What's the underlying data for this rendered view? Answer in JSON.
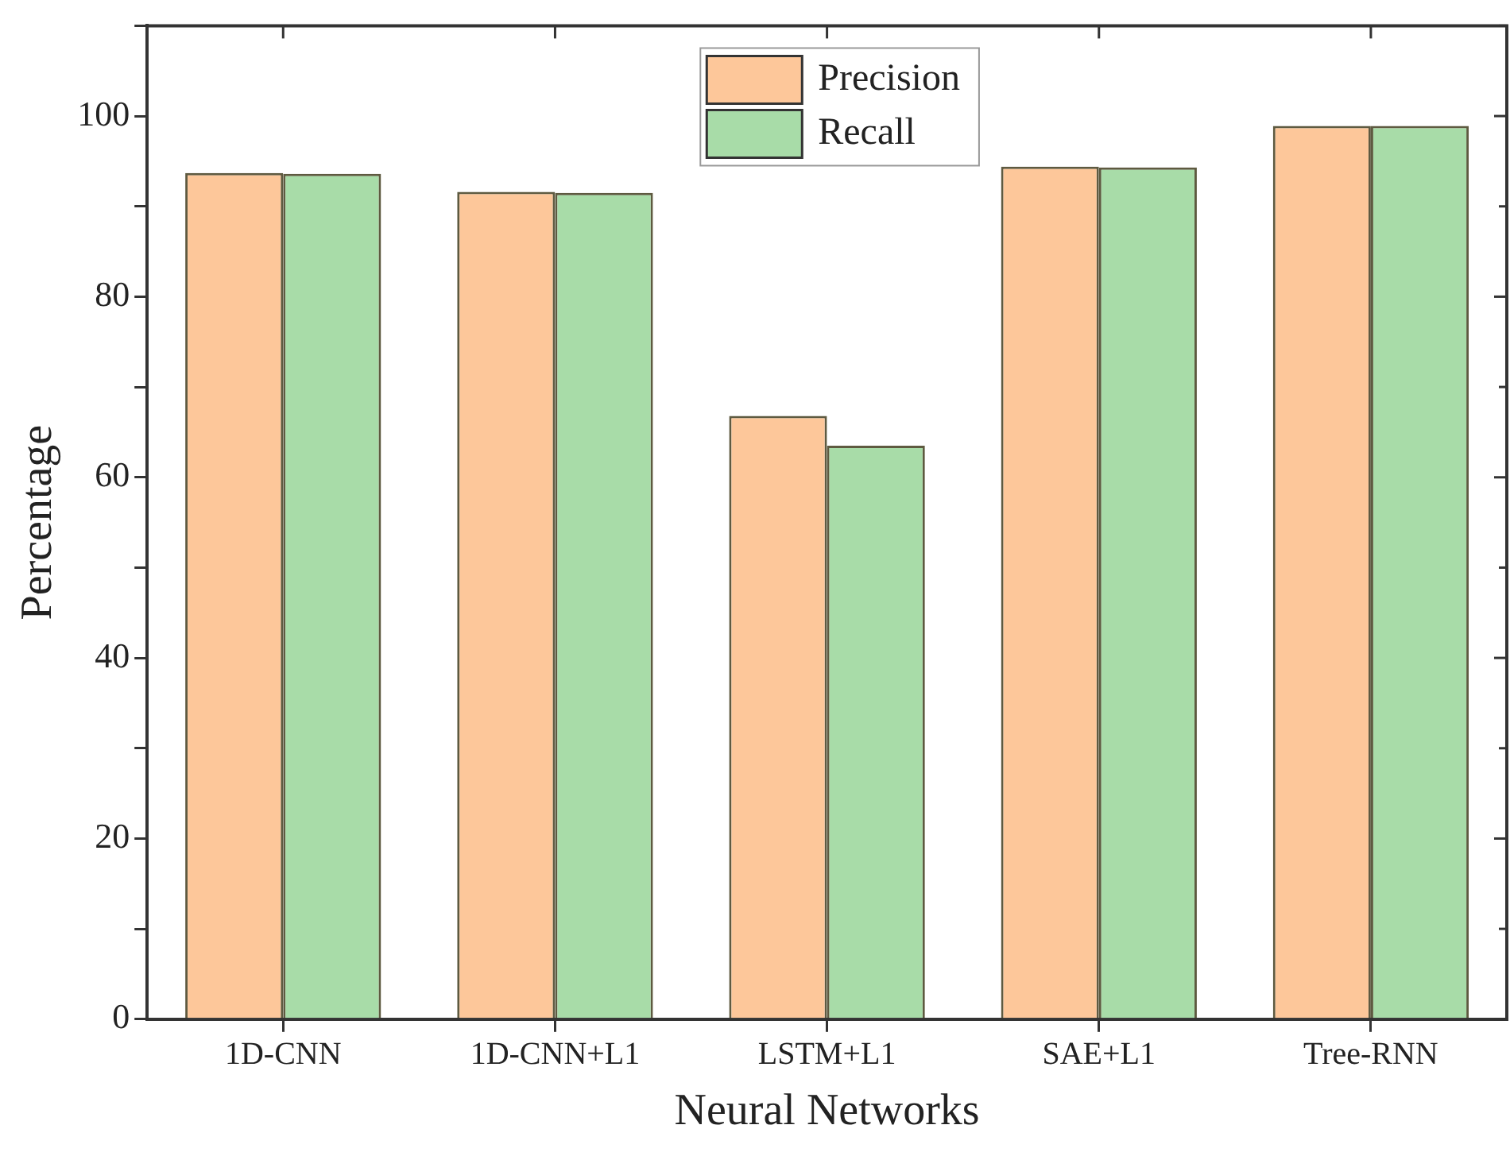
{
  "chart_data": {
    "type": "bar",
    "xlabel": "Neural Networks",
    "ylabel": "Percentage",
    "categories": [
      "1D-CNN",
      "1D-CNN+L1",
      "LSTM+L1",
      "SAE+L1",
      "Tree-RNN"
    ],
    "series": [
      {
        "name": "Precision",
        "color": "#fdc79a",
        "values": [
          93.7,
          91.6,
          66.8,
          94.4,
          98.9
        ]
      },
      {
        "name": "Recall",
        "color": "#a8dca8",
        "values": [
          93.6,
          91.5,
          63.5,
          94.3,
          98.9
        ]
      }
    ],
    "ylim": [
      0,
      110
    ],
    "yticks": [
      0,
      {
        "value": 10,
        "label": null
      },
      20,
      {
        "value": 30,
        "label": null
      },
      40,
      {
        "value": 50,
        "label": null
      },
      60,
      {
        "value": 70,
        "label": null
      },
      80,
      {
        "value": 90,
        "label": null
      },
      100,
      {
        "value": 110,
        "label": null
      }
    ],
    "grid": false,
    "legend": "top"
  }
}
